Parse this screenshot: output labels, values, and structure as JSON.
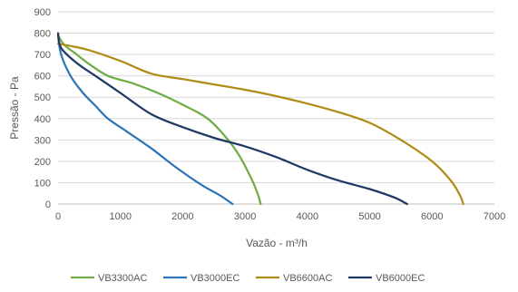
{
  "chart_data": {
    "type": "line",
    "title": "",
    "xlabel": "Vazão - m³/h",
    "ylabel": "Pressão - Pa",
    "xlim": [
      0,
      7000
    ],
    "ylim": [
      0,
      900
    ],
    "x_ticks": [
      "0",
      "1000",
      "2000",
      "3000",
      "4000",
      "5000",
      "6000",
      "7000"
    ],
    "y_ticks": [
      "0",
      "100",
      "200",
      "300",
      "400",
      "500",
      "600",
      "700",
      "800",
      "900"
    ],
    "grid": "horizontal",
    "legend_position": "bottom",
    "series": [
      {
        "name": "VB3300AC",
        "color": "#70ad47",
        "points": [
          [
            0,
            790
          ],
          [
            100,
            745
          ],
          [
            300,
            700
          ],
          [
            500,
            655
          ],
          [
            800,
            600
          ],
          [
            1200,
            565
          ],
          [
            1600,
            520
          ],
          [
            2000,
            465
          ],
          [
            2400,
            400
          ],
          [
            2700,
            310
          ],
          [
            2900,
            230
          ],
          [
            3100,
            120
          ],
          [
            3200,
            50
          ],
          [
            3250,
            0
          ]
        ]
      },
      {
        "name": "VB3000EC",
        "color": "#2e75b6",
        "points": [
          [
            0,
            790
          ],
          [
            50,
            700
          ],
          [
            200,
            600
          ],
          [
            400,
            520
          ],
          [
            600,
            460
          ],
          [
            800,
            400
          ],
          [
            1100,
            340
          ],
          [
            1500,
            260
          ],
          [
            1900,
            170
          ],
          [
            2300,
            90
          ],
          [
            2600,
            40
          ],
          [
            2750,
            10
          ],
          [
            2800,
            0
          ]
        ]
      },
      {
        "name": "VB6600AC",
        "color": "#b08c16",
        "points": [
          [
            0,
            750
          ],
          [
            200,
            740
          ],
          [
            500,
            720
          ],
          [
            1000,
            670
          ],
          [
            1500,
            610
          ],
          [
            2000,
            585
          ],
          [
            2500,
            560
          ],
          [
            3000,
            535
          ],
          [
            3500,
            505
          ],
          [
            4000,
            470
          ],
          [
            4500,
            430
          ],
          [
            5000,
            380
          ],
          [
            5500,
            300
          ],
          [
            6000,
            200
          ],
          [
            6300,
            110
          ],
          [
            6450,
            40
          ],
          [
            6500,
            0
          ]
        ]
      },
      {
        "name": "VB6000EC",
        "color": "#203864",
        "points": [
          [
            0,
            800
          ],
          [
            50,
            730
          ],
          [
            300,
            660
          ],
          [
            600,
            600
          ],
          [
            1000,
            520
          ],
          [
            1500,
            420
          ],
          [
            2000,
            360
          ],
          [
            2500,
            310
          ],
          [
            3000,
            270
          ],
          [
            3500,
            220
          ],
          [
            4000,
            160
          ],
          [
            4500,
            110
          ],
          [
            5000,
            70
          ],
          [
            5400,
            30
          ],
          [
            5600,
            0
          ]
        ]
      }
    ]
  }
}
